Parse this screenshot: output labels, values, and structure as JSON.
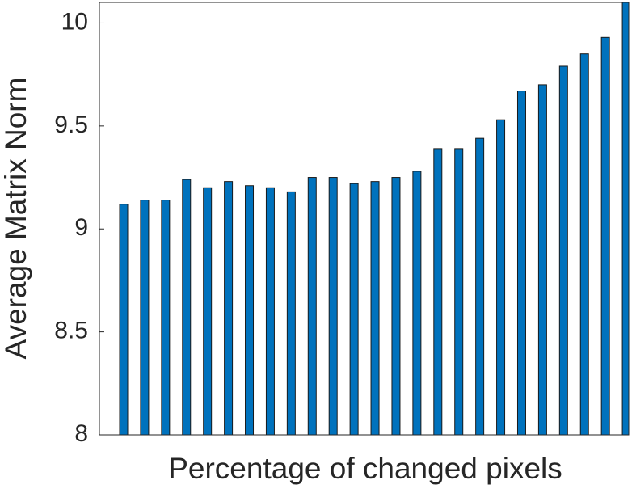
{
  "chart_data": {
    "type": "bar",
    "xlabel": "Percentage of changed pixels",
    "ylabel": "Average Matrix Norm",
    "categories": [
      null,
      null,
      null,
      null,
      null,
      null,
      null,
      null,
      null,
      null,
      null,
      null,
      null,
      null,
      null,
      null,
      null,
      null,
      null,
      null,
      null,
      null,
      null,
      null,
      null
    ],
    "values": [
      9.12,
      9.14,
      9.14,
      9.24,
      9.2,
      9.23,
      9.21,
      9.2,
      9.18,
      9.25,
      9.25,
      9.22,
      9.23,
      9.25,
      9.28,
      9.39,
      9.39,
      9.44,
      9.53,
      9.67,
      9.7,
      9.79,
      9.85,
      9.93,
      10.15
    ],
    "color": "#0072bd",
    "ylim": [
      8,
      10.1
    ],
    "yticks": [
      8,
      8.5,
      9,
      9.5,
      10
    ],
    "grid": false
  }
}
